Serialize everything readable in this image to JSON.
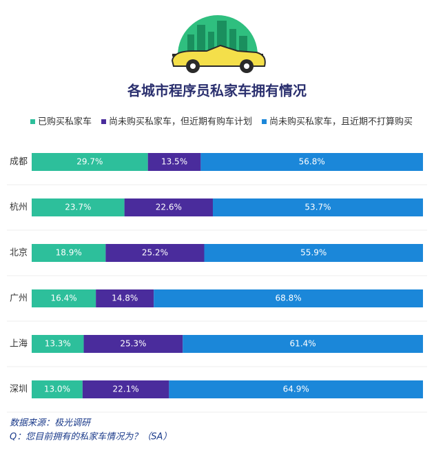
{
  "chart_data": {
    "type": "stacked_bar_horizontal",
    "title": "各城市程序员私家车拥有情况",
    "categories": [
      "成都",
      "杭州",
      "北京",
      "广州",
      "上海",
      "深圳"
    ],
    "xlim": [
      0,
      100
    ],
    "series": [
      {
        "name": "已购买私家车",
        "color": "#2dbf9b",
        "values": [
          29.7,
          23.7,
          18.9,
          16.4,
          13.3,
          13.0
        ],
        "value_labels": [
          "29.7%",
          "23.7%",
          "18.9%",
          "16.4%",
          "13.3%",
          "13.0%"
        ]
      },
      {
        "name": "尚未购买私家车，但近期有购车计划",
        "color": "#4a2c9c",
        "values": [
          13.5,
          22.6,
          25.2,
          14.8,
          25.3,
          22.1
        ],
        "value_labels": [
          "13.5%",
          "22.6%",
          "25.2%",
          "14.8%",
          "25.3%",
          "22.1%"
        ]
      },
      {
        "name": "尚未购买私家车，且近期不打算购买",
        "color": "#1b87d9",
        "values": [
          56.8,
          53.7,
          55.9,
          68.8,
          61.4,
          64.9
        ],
        "value_labels": [
          "56.8%",
          "53.7%",
          "55.9%",
          "68.8%",
          "61.4%",
          "64.9%"
        ]
      }
    ],
    "source": "数据来源：极光调研",
    "question": "Q：您目前拥有的私家车情况为？（SA）"
  }
}
